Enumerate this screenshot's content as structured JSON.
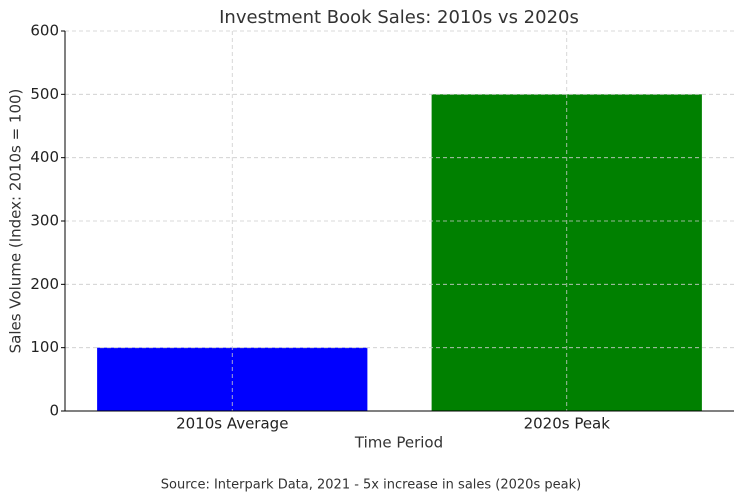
{
  "chart_data": {
    "type": "bar",
    "title": "Investment Book Sales: 2010s vs 2020s",
    "x_label": "Time Period",
    "y_label": "Sales Volume (Index: 2010s = 100)",
    "footnote": "Source: Interpark Data, 2021 - 5x increase in sales (2020s peak)",
    "categories": [
      "2010s Average",
      "2020s Peak"
    ],
    "values": [
      100,
      500
    ],
    "colors": [
      "blue",
      "green"
    ],
    "ylim": [
      0,
      600
    ],
    "yticks": [
      0,
      100,
      200,
      300,
      400,
      500,
      600
    ],
    "grid": true
  }
}
